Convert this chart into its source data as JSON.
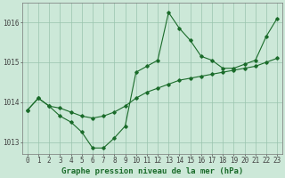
{
  "background_color": "#cce8d8",
  "plot_background": "#cce8d8",
  "line_color": "#1a6b2a",
  "marker_color": "#1a6b2a",
  "grid_color": "#99c4ad",
  "x_values": [
    0,
    1,
    2,
    3,
    4,
    5,
    6,
    7,
    8,
    9,
    10,
    11,
    12,
    13,
    14,
    15,
    16,
    17,
    18,
    19,
    20,
    21,
    22,
    23
  ],
  "series1_y": [
    1013.8,
    1014.1,
    1013.9,
    1013.85,
    1013.75,
    1013.65,
    1013.6,
    1013.65,
    1013.75,
    1013.9,
    1014.1,
    1014.25,
    1014.35,
    1014.45,
    1014.55,
    1014.6,
    1014.65,
    1014.7,
    1014.75,
    1014.8,
    1014.85,
    1014.9,
    1015.0,
    1015.1
  ],
  "series2_y": [
    1013.8,
    1014.1,
    1013.9,
    1013.65,
    1013.5,
    1013.25,
    1012.85,
    1012.85,
    1013.1,
    1013.4,
    1014.75,
    1014.9,
    1015.05,
    1016.25,
    1015.85,
    1015.55,
    1015.15,
    1015.05,
    1014.85,
    1014.85,
    1014.95,
    1015.05,
    1015.65,
    1016.1
  ],
  "ylim": [
    1012.7,
    1016.5
  ],
  "yticks": [
    1013,
    1014,
    1015,
    1016
  ],
  "tick_fontsize": 5.5,
  "label_fontsize": 6.5,
  "xlabel": "Graphe pression niveau de la mer (hPa)"
}
